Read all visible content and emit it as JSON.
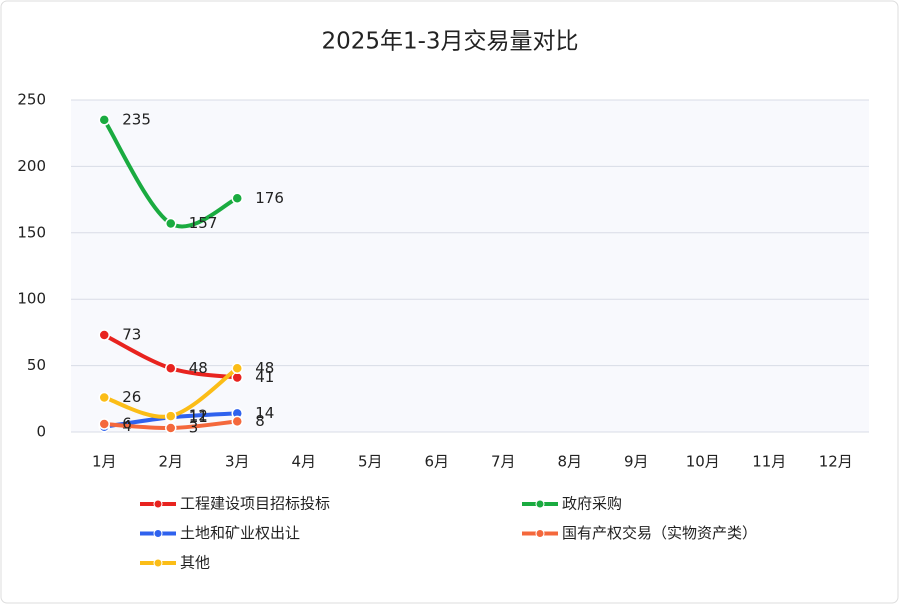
{
  "chart_data": {
    "type": "line",
    "title": "2025年1-3月交易量对比",
    "categories": [
      "1月",
      "2月",
      "3月",
      "4月",
      "5月",
      "6月",
      "7月",
      "8月",
      "9月",
      "10月",
      "11月",
      "12月"
    ],
    "series": [
      {
        "name": "工程建设项目招标投标",
        "color": "#e8231f",
        "values": [
          73,
          48,
          41,
          null,
          null,
          null,
          null,
          null,
          null,
          null,
          null,
          null
        ]
      },
      {
        "name": "政府采购",
        "color": "#1aab40",
        "values": [
          235,
          157,
          176,
          null,
          null,
          null,
          null,
          null,
          null,
          null,
          null,
          null
        ]
      },
      {
        "name": "土地和矿业权出让",
        "color": "#2f62ee",
        "values": [
          4,
          11,
          14,
          null,
          null,
          null,
          null,
          null,
          null,
          null,
          null,
          null
        ]
      },
      {
        "name": "国有产权交易（实物资产类）",
        "color": "#f4683c",
        "values": [
          6,
          3,
          8,
          null,
          null,
          null,
          null,
          null,
          null,
          null,
          null,
          null
        ]
      },
      {
        "name": "其他",
        "color": "#fbbd17",
        "values": [
          26,
          12,
          48,
          null,
          null,
          null,
          null,
          null,
          null,
          null,
          null,
          null
        ]
      }
    ],
    "ylim": [
      0,
      250
    ],
    "yticks": [
      0,
      50,
      100,
      150,
      200,
      250
    ],
    "grid": true,
    "legend": "bottom"
  }
}
